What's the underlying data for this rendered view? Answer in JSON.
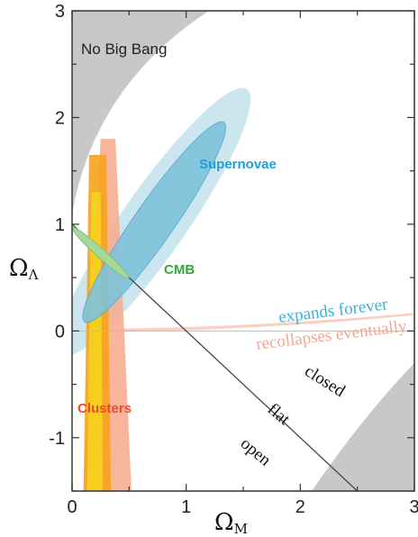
{
  "chart_data": {
    "type": "contour",
    "xlabel": "Ω",
    "xlabel_subscript": "M",
    "ylabel": "Ω",
    "ylabel_subscript": "Λ",
    "xlim": [
      0,
      3
    ],
    "ylim": [
      -1.5,
      3
    ],
    "x_ticks": [
      "0",
      "1",
      "2",
      "3"
    ],
    "y_ticks": [
      "-1",
      "0",
      "1",
      "2",
      "3"
    ],
    "regions": [
      {
        "name": "No Big Bang",
        "color": "#c8c8c8"
      },
      {
        "name": "Supernovae",
        "color": "#1f9fd6",
        "inner_color": "#7fc3dc",
        "outer_color": "#cce6ef"
      },
      {
        "name": "CMB",
        "color": "#3aa43a",
        "fill": "#a8d79a"
      },
      {
        "name": "Clusters",
        "color": "#f04a24",
        "inner_color": "#f5d21e",
        "middle_color": "#f7a21c",
        "outer_color": "#f6ad90"
      }
    ],
    "lines": [
      {
        "label": "flat",
        "from": [
          0,
          1
        ],
        "to": [
          2.5,
          -1.5
        ]
      },
      {
        "label": "expands forever",
        "color": "#3ab2d8"
      },
      {
        "label": "recollapses eventually",
        "color": "#f4a88a"
      }
    ],
    "annotations": [
      "closed",
      "open"
    ]
  }
}
